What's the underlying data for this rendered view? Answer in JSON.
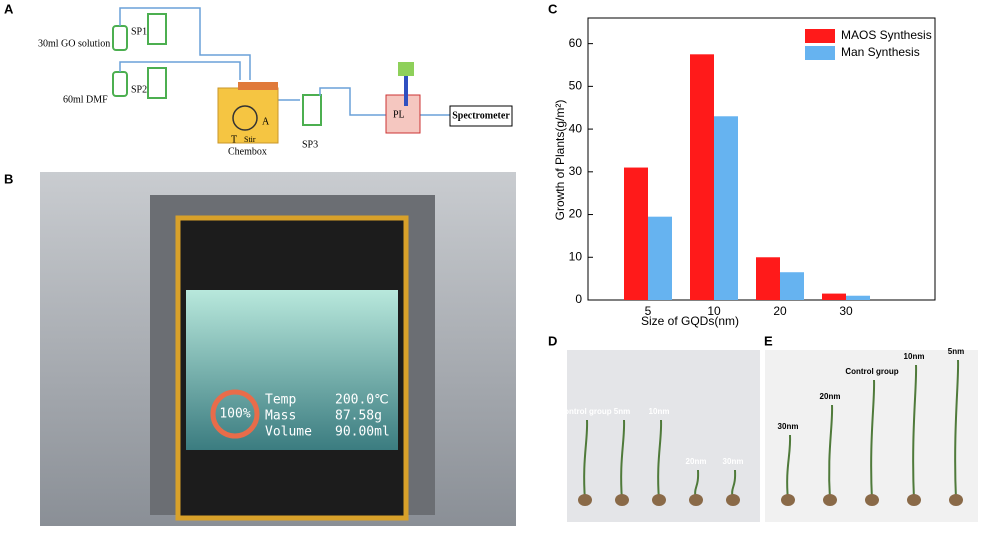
{
  "panel_a": {
    "label": "A",
    "go_solution": "30ml GO solution",
    "dmf": "60ml DMF",
    "sp1": "SP1",
    "sp2": "SP2",
    "sp3": "SP3",
    "chembox": "Chembox",
    "t": "T",
    "stir": "Stir",
    "box_label": "A",
    "pl": "PL",
    "spectrometer": "Spectrometer"
  },
  "panel_b": {
    "label": "B",
    "screen": {
      "percent": "100%",
      "temp_label": "Temp",
      "temp_value": "200.0℃",
      "mass_label": "Mass",
      "mass_value": "87.58g",
      "volume_label": "Volume",
      "volume_value": "90.00ml"
    }
  },
  "panel_c_label": "C",
  "chart_data": {
    "type": "bar",
    "xlabel": "Size of GQDs(nm)",
    "ylabel": "Growth of Plants(g/m²)",
    "categories": [
      "5",
      "10",
      "20",
      "30"
    ],
    "series": [
      {
        "name": "MAOS Synthesis",
        "color": "#ff1a1a",
        "values": [
          31,
          57.5,
          10,
          1.5
        ]
      },
      {
        "name": "Man Synthesis",
        "color": "#66b3f0",
        "values": [
          19.5,
          43,
          6.5,
          1
        ]
      }
    ],
    "ylim": [
      0,
      66
    ],
    "yticks": [
      0,
      10,
      20,
      30,
      40,
      50,
      60
    ],
    "grid": false,
    "legend": "upper right"
  },
  "panel_d": {
    "label": "D",
    "plant_labels": [
      "Control group",
      "5nm",
      "10nm",
      "20nm",
      "30nm"
    ]
  },
  "panel_e": {
    "label": "E",
    "plant_labels": [
      "30nm",
      "20nm",
      "Control group",
      "10nm",
      "5nm"
    ]
  }
}
